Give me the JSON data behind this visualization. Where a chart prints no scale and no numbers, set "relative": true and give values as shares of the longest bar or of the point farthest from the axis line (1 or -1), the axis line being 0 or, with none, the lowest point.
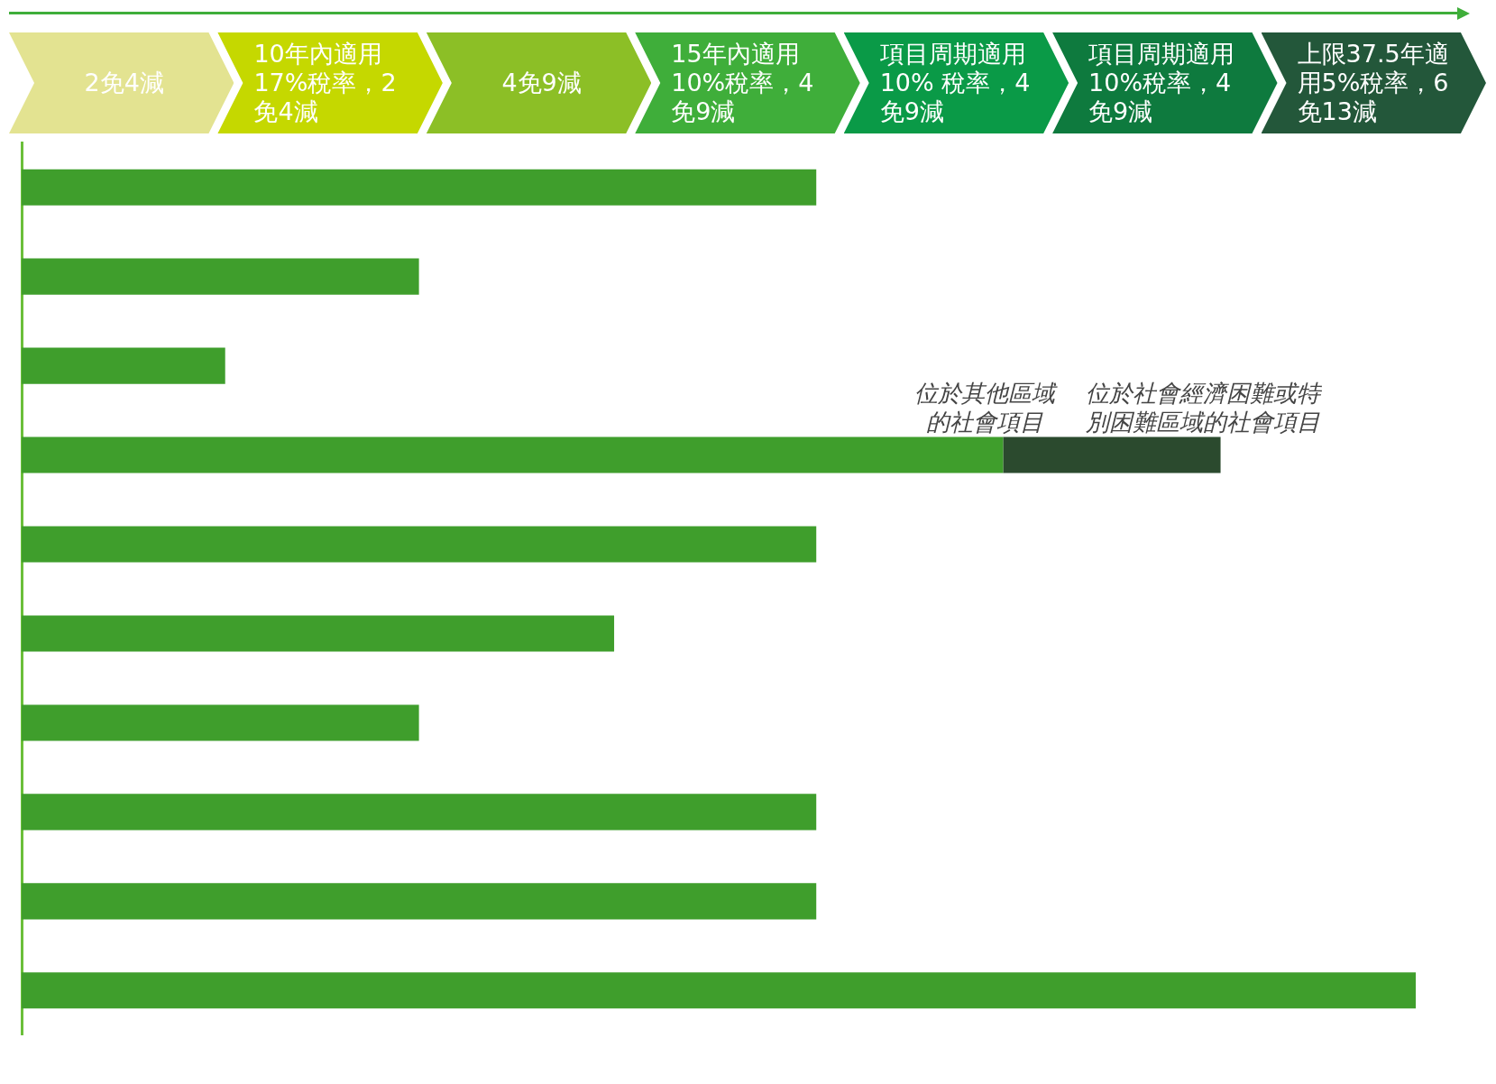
{
  "chart_data": {
    "type": "bar",
    "orientation": "horizontal",
    "relative": true,
    "stacked": true,
    "grid": false,
    "legend": false,
    "categories": [
      null,
      null,
      null,
      null,
      null,
      null,
      null,
      null,
      null,
      null
    ],
    "series": [
      {
        "color": "#3f9e2c",
        "values": [
          0.57,
          0.285,
          0.146,
          0.704,
          0.57,
          0.425,
          0.285,
          0.57,
          0.57,
          1
        ]
      },
      {
        "color": "#2b4a2e",
        "values": [
          null,
          null,
          null,
          0.156,
          null,
          null,
          null,
          null,
          null,
          null
        ]
      }
    ],
    "annotations": [
      "2免4減",
      "10年內適用17%稅率，2免4減",
      "4免9減",
      "15年內適用10%稅率，4免9減",
      "項目周期適用10% 稅率，4免9減",
      "項目周期適用10%稅率，4 免9減",
      "上限37.5年適用5%稅率，6免13減",
      "位於其他區域的社會項目",
      "位於社會經濟困難或特別困難區域的社會項目"
    ]
  }
}
